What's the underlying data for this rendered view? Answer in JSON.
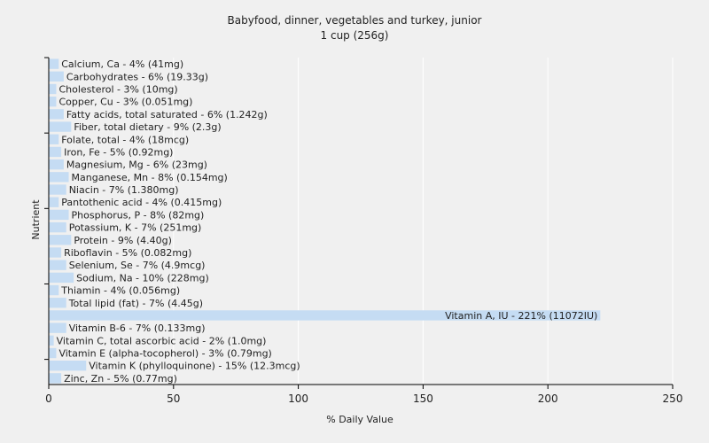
{
  "chart_data": {
    "type": "bar",
    "orientation": "horizontal",
    "title": "Babyfood, dinner, vegetables and turkey, junior",
    "subtitle": "1 cup (256g)",
    "xlabel": "% Daily Value",
    "ylabel": "Nutrient",
    "xlim": [
      0,
      250
    ],
    "xticks": [
      "0",
      "50",
      "100",
      "150",
      "200",
      "250"
    ],
    "grid": true,
    "bar_color": "#c5dcf3",
    "grid_color": "#ffffff",
    "background": "#f0f0f0",
    "categories": [
      "Calcium, Ca",
      "Carbohydrates",
      "Cholesterol",
      "Copper, Cu",
      "Fatty acids, total saturated",
      "Fiber, total dietary",
      "Folate, total",
      "Iron, Fe",
      "Magnesium, Mg",
      "Manganese, Mn",
      "Niacin",
      "Pantothenic acid",
      "Phosphorus, P",
      "Potassium, K",
      "Protein",
      "Riboflavin",
      "Selenium, Se",
      "Sodium, Na",
      "Thiamin",
      "Total lipid (fat)",
      "Vitamin A, IU",
      "Vitamin B-6",
      "Vitamin C, total ascorbic acid",
      "Vitamin E (alpha-tocopherol)",
      "Vitamin K (phylloquinone)",
      "Zinc, Zn"
    ],
    "values": [
      4,
      6,
      3,
      3,
      6,
      9,
      4,
      5,
      6,
      8,
      7,
      4,
      8,
      7,
      9,
      5,
      7,
      10,
      4,
      7,
      221,
      7,
      2,
      3,
      15,
      5
    ],
    "labels": [
      "Calcium, Ca - 4% (41mg)",
      "Carbohydrates - 6% (19.33g)",
      "Cholesterol - 3% (10mg)",
      "Copper, Cu - 3% (0.051mg)",
      "Fatty acids, total saturated - 6% (1.242g)",
      "Fiber, total dietary - 9% (2.3g)",
      "Folate, total - 4% (18mcg)",
      "Iron, Fe - 5% (0.92mg)",
      "Magnesium, Mg - 6% (23mg)",
      "Manganese, Mn - 8% (0.154mg)",
      "Niacin - 7% (1.380mg)",
      "Pantothenic acid - 4% (0.415mg)",
      "Phosphorus, P - 8% (82mg)",
      "Potassium, K - 7% (251mg)",
      "Protein - 9% (4.40g)",
      "Riboflavin - 5% (0.082mg)",
      "Selenium, Se - 7% (4.9mcg)",
      "Sodium, Na - 10% (228mg)",
      "Thiamin - 4% (0.056mg)",
      "Total lipid (fat) - 7% (4.45g)",
      "Vitamin A, IU - 221% (11072IU)",
      "Vitamin B-6 - 7% (0.133mg)",
      "Vitamin C, total ascorbic acid - 2% (1.0mg)",
      "Vitamin E (alpha-tocopherol) - 3% (0.79mg)",
      "Vitamin K (phylloquinone) - 15% (12.3mcg)",
      "Zinc, Zn - 5% (0.77mg)"
    ]
  }
}
